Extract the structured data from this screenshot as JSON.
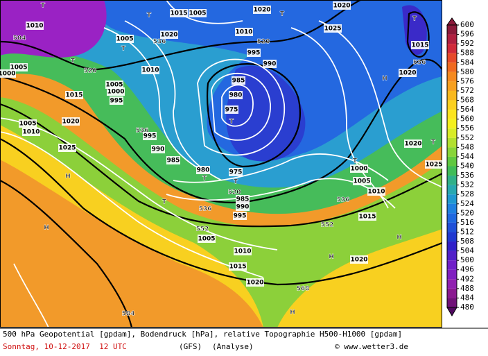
{
  "map": {
    "labels": [
      "504",
      "520",
      "536",
      "536",
      "520",
      "536",
      "552",
      "552",
      "536",
      "536",
      "520",
      "568",
      "584",
      "T",
      "T",
      "T",
      "T",
      "T",
      "T",
      "T",
      "T",
      "T",
      "T",
      "T",
      "T",
      "H",
      "H",
      "H",
      "H",
      "H",
      "H",
      "1010",
      "1015",
      "1005",
      "1020",
      "1025",
      "1010",
      "995",
      "990",
      "985",
      "980",
      "975",
      "1015",
      "1010",
      "1005",
      "1000",
      "995",
      "1020",
      "1025",
      "1005",
      "1010",
      "995",
      "990",
      "985",
      "980",
      "975",
      "985",
      "990",
      "995",
      "1005",
      "1010",
      "1015",
      "1020",
      "1020",
      "1025",
      "1000",
      "1005",
      "1010",
      "1015",
      "1020",
      "1015",
      "1020",
      "1020",
      "1020",
      "1005",
      "1005",
      "1000"
    ]
  },
  "colorbar": {
    "ticks": [
      600,
      596,
      592,
      588,
      584,
      580,
      576,
      572,
      568,
      564,
      560,
      556,
      552,
      548,
      544,
      540,
      536,
      532,
      528,
      524,
      520,
      516,
      512,
      508,
      504,
      500,
      496,
      492,
      488,
      484,
      480
    ],
    "colors": [
      "#8b1a3a",
      "#b02040",
      "#d02a3a",
      "#e64a2a",
      "#f06a20",
      "#f58a20",
      "#f7a020",
      "#f9b81e",
      "#fbd020",
      "#fce41e",
      "#f4f01e",
      "#d8ec28",
      "#b2e030",
      "#88d438",
      "#60c840",
      "#40bc58",
      "#30b088",
      "#28a8b0",
      "#2098d0",
      "#2080e0",
      "#2068e0",
      "#2050d8",
      "#2038d0",
      "#3020c8",
      "#5020c8",
      "#7020c8",
      "#8020c0",
      "#9020b0",
      "#8a1890",
      "#701078",
      "#500860"
    ]
  },
  "footer": {
    "description": "500 hPa Geopotential [gpdam], Bodendruck [hPa], relative Topographie H500-H1000 [gpdam]",
    "date": "Sonntag, 10-12-2017  12 UTC",
    "model": "(GFS)",
    "run": "(Analyse)",
    "credit": "© www.wetter3.de"
  }
}
